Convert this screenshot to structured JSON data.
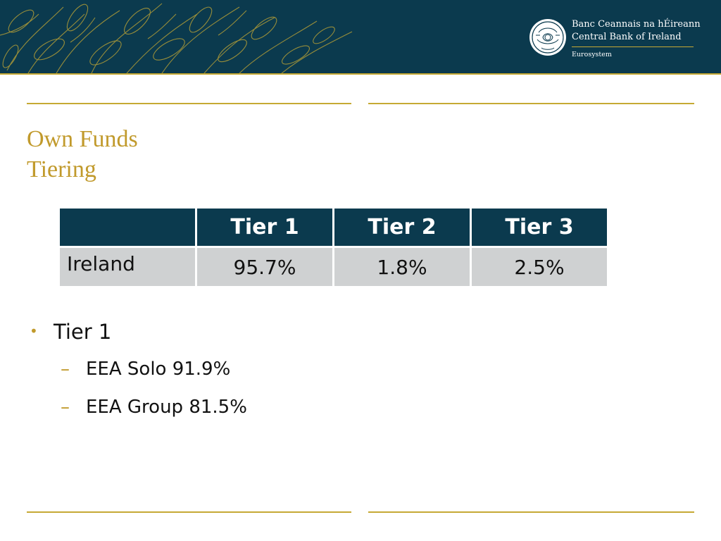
{
  "brand": {
    "name_irish": "Banc Ceannais na hÉireann",
    "name_english": "Central Bank of Ireland",
    "eurosystem": "Eurosystem",
    "colors": {
      "navy": "#0b3a4e",
      "gold": "#c6a934",
      "title_gold": "#c19a2c",
      "cell_grey": "#cfd1d2"
    }
  },
  "title": {
    "line1": "Own Funds",
    "line2": "Tiering"
  },
  "table": {
    "headers": [
      "",
      "Tier 1",
      "Tier 2",
      "Tier 3"
    ],
    "rows": [
      {
        "label": "Ireland",
        "values": [
          "95.7%",
          "1.8%",
          "2.5%"
        ]
      }
    ]
  },
  "bullets": {
    "item1": "Tier 1",
    "sub": [
      "EEA Solo 91.9%",
      "EEA Group 81.5%"
    ]
  }
}
